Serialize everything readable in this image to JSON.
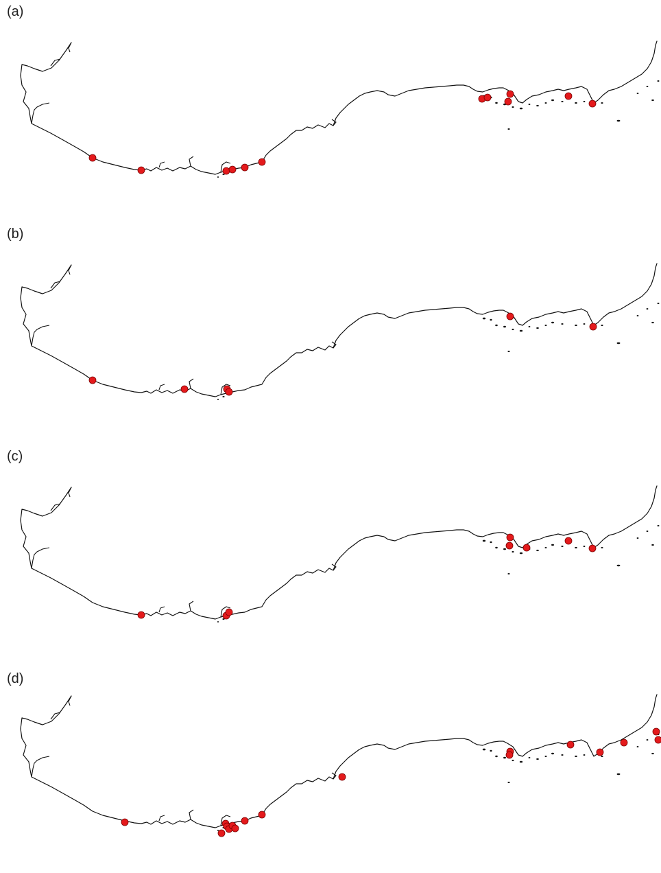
{
  "colors": {
    "coastline": "#111111",
    "site_marker": "#e41a1c",
    "background": "#ffffff"
  },
  "panels": [
    {
      "label": "(a)",
      "sites": [
        [
          135,
          230
        ],
        [
          206,
          248
        ],
        [
          330,
          249
        ],
        [
          339,
          247
        ],
        [
          357,
          244
        ],
        [
          382,
          236
        ],
        [
          703,
          144
        ],
        [
          711,
          142
        ],
        [
          744,
          137
        ],
        [
          741,
          148
        ],
        [
          829,
          140
        ],
        [
          864,
          151
        ]
      ]
    },
    {
      "label": "(b)",
      "sites": [
        [
          135,
          230
        ],
        [
          269,
          243
        ],
        [
          331,
          243
        ],
        [
          334,
          247
        ],
        [
          744,
          137
        ],
        [
          865,
          152
        ]
      ]
    },
    {
      "label": "(c)",
      "sites": [
        [
          206,
          248
        ],
        [
          330,
          249
        ],
        [
          334,
          244
        ],
        [
          744,
          135
        ],
        [
          743,
          147
        ],
        [
          768,
          150
        ],
        [
          829,
          140
        ],
        [
          864,
          151
        ]
      ]
    },
    {
      "label": "(d)",
      "sites": [
        [
          182,
          226
        ],
        [
          329,
          228
        ],
        [
          331,
          232
        ],
        [
          334,
          236
        ],
        [
          339,
          231
        ],
        [
          343,
          235
        ],
        [
          357,
          224
        ],
        [
          382,
          215
        ],
        [
          323,
          242
        ],
        [
          499,
          160
        ],
        [
          744,
          123
        ],
        [
          743,
          128
        ],
        [
          832,
          113
        ],
        [
          875,
          124
        ],
        [
          910,
          110
        ],
        [
          957,
          94
        ],
        [
          960,
          106
        ]
      ]
    }
  ]
}
